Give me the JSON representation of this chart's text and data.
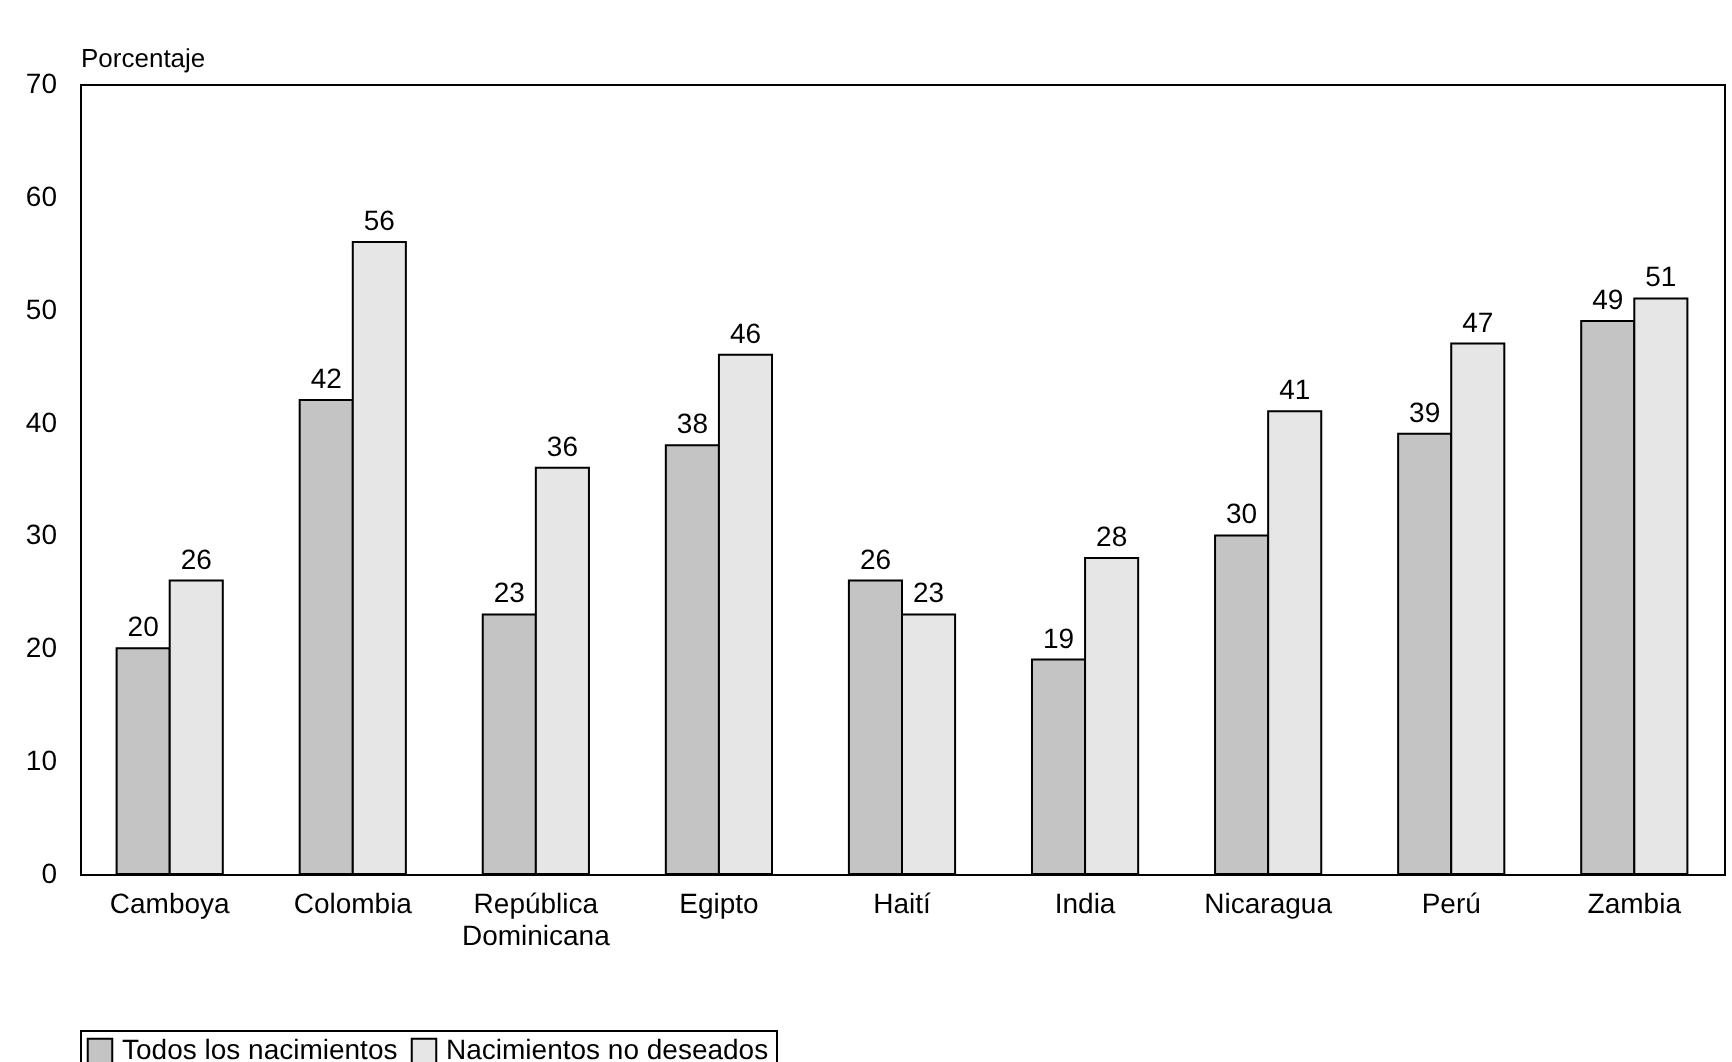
{
  "chart_data": {
    "type": "bar",
    "ylabel": "Porcentaje",
    "categories": [
      "Camboya",
      "Colombia",
      "República Dominicana",
      "Egipto",
      "Haití",
      "India",
      "Nicaragua",
      "Perú",
      "Zambia"
    ],
    "series": [
      {
        "name": "Todos los nacimientos",
        "color": "#c4c4c4",
        "values": [
          20,
          42,
          23,
          38,
          26,
          19,
          30,
          39,
          49
        ]
      },
      {
        "name": "Nacimientos no deseados",
        "color": "#e6e6e6",
        "values": [
          26,
          56,
          36,
          46,
          23,
          28,
          41,
          47,
          51
        ]
      }
    ],
    "ylim": [
      0,
      70
    ],
    "yticks": [
      0,
      10,
      20,
      30,
      40,
      50,
      60,
      70
    ],
    "grid": false,
    "legend": "bottom",
    "data_labels": true
  }
}
